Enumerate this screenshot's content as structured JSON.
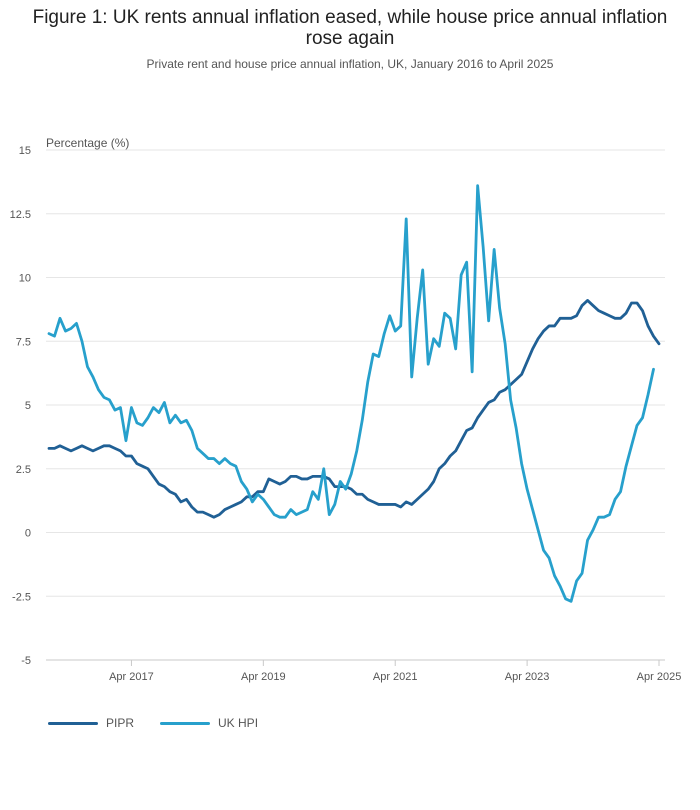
{
  "chart_data": {
    "type": "line",
    "title": "Figure 1: UK rents annual inflation eased, while house price annual inflation rose again",
    "subtitle": "Private rent and house price annual inflation, UK, January 2016 to April 2025",
    "ylabel": "Percentage (%)",
    "xlabel": "",
    "ylim": [
      -5,
      15
    ],
    "yticks": [
      15,
      12.5,
      10,
      7.5,
      5,
      2.5,
      0,
      -2.5,
      -5
    ],
    "ytick_labels": [
      "15",
      "12.5",
      "10",
      "7.5",
      "5",
      "2.5",
      "0",
      "-2.5",
      "-5"
    ],
    "xticks": [
      "Apr 2017",
      "Apr 2019",
      "Apr 2021",
      "Apr 2023",
      "Apr 2025"
    ],
    "xtick_index": [
      15,
      39,
      63,
      87,
      111
    ],
    "x_start": "Jan 2016",
    "x_end": "Apr 2025",
    "series": [
      {
        "name": "PIPR",
        "color": "#206095",
        "values": [
          3.3,
          3.3,
          3.4,
          3.3,
          3.2,
          3.3,
          3.4,
          3.3,
          3.2,
          3.3,
          3.4,
          3.4,
          3.3,
          3.2,
          3.0,
          3.0,
          2.7,
          2.6,
          2.5,
          2.2,
          1.9,
          1.8,
          1.6,
          1.5,
          1.2,
          1.3,
          1.0,
          0.8,
          0.8,
          0.7,
          0.6,
          0.7,
          0.9,
          1.0,
          1.1,
          1.2,
          1.4,
          1.4,
          1.6,
          1.6,
          2.1,
          2.0,
          1.9,
          2.0,
          2.2,
          2.2,
          2.1,
          2.1,
          2.2,
          2.2,
          2.2,
          2.1,
          1.8,
          1.8,
          1.8,
          1.7,
          1.5,
          1.5,
          1.3,
          1.2,
          1.1,
          1.1,
          1.1,
          1.1,
          1.0,
          1.2,
          1.1,
          1.3,
          1.5,
          1.7,
          2.0,
          2.5,
          2.7,
          3.0,
          3.2,
          3.6,
          4.0,
          4.1,
          4.5,
          4.8,
          5.1,
          5.2,
          5.5,
          5.6,
          5.8,
          6.0,
          6.2,
          6.7,
          7.2,
          7.6,
          7.9,
          8.1,
          8.1,
          8.4,
          8.4,
          8.4,
          8.5,
          8.9,
          9.1,
          8.9,
          8.7,
          8.6,
          8.5,
          8.4,
          8.4,
          8.6,
          9.0,
          9.0,
          8.7,
          8.1,
          7.7,
          7.4
        ]
      },
      {
        "name": "UK HPI",
        "color": "#27a0cc",
        "values": [
          7.8,
          7.7,
          8.4,
          7.9,
          8.0,
          8.2,
          7.5,
          6.5,
          6.1,
          5.6,
          5.3,
          5.2,
          4.8,
          4.9,
          3.6,
          4.9,
          4.3,
          4.2,
          4.5,
          4.9,
          4.7,
          5.1,
          4.3,
          4.6,
          4.3,
          4.4,
          4.0,
          3.3,
          3.1,
          2.9,
          2.9,
          2.7,
          2.9,
          2.7,
          2.6,
          2.0,
          1.7,
          1.2,
          1.5,
          1.3,
          1.0,
          0.7,
          0.6,
          0.6,
          0.9,
          0.7,
          0.8,
          0.9,
          1.6,
          1.3,
          2.5,
          0.7,
          1.1,
          2.0,
          1.7,
          2.3,
          3.2,
          4.4,
          5.9,
          7.0,
          6.9,
          7.8,
          8.5,
          7.9,
          8.1,
          12.3,
          6.1,
          8.4,
          10.3,
          6.6,
          7.6,
          7.3,
          8.6,
          8.4,
          7.2,
          10.1,
          10.6,
          6.3,
          13.6,
          11.2,
          8.3,
          11.1,
          8.8,
          7.4,
          5.2,
          4.1,
          2.7,
          1.7,
          0.9,
          0.1,
          -0.7,
          -1.0,
          -1.7,
          -2.1,
          -2.6,
          -2.7,
          -1.9,
          -1.6,
          -0.3,
          0.1,
          0.6,
          0.6,
          0.7,
          1.3,
          1.6,
          2.6,
          3.4,
          4.2,
          4.5,
          5.4,
          6.4
        ]
      }
    ],
    "legend_position": "bottom-left",
    "grid": true
  }
}
